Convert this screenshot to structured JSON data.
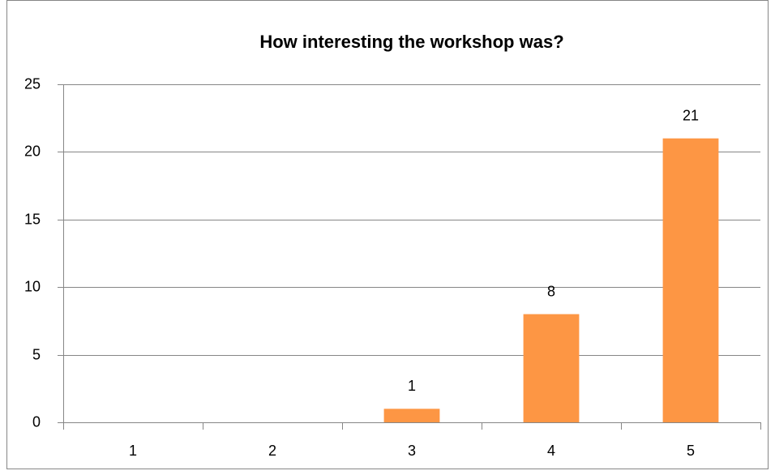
{
  "chart_data": {
    "type": "bar",
    "title": "How interesting the workshop was?",
    "categories": [
      "1",
      "2",
      "3",
      "4",
      "5"
    ],
    "values": [
      0,
      0,
      1,
      8,
      21
    ],
    "value_labels": [
      null,
      null,
      "1",
      "8",
      "21"
    ],
    "color": "#fd9644",
    "ylim": [
      0,
      25
    ],
    "yticks": [
      0,
      5,
      10,
      15,
      20,
      25
    ],
    "grid": true
  }
}
